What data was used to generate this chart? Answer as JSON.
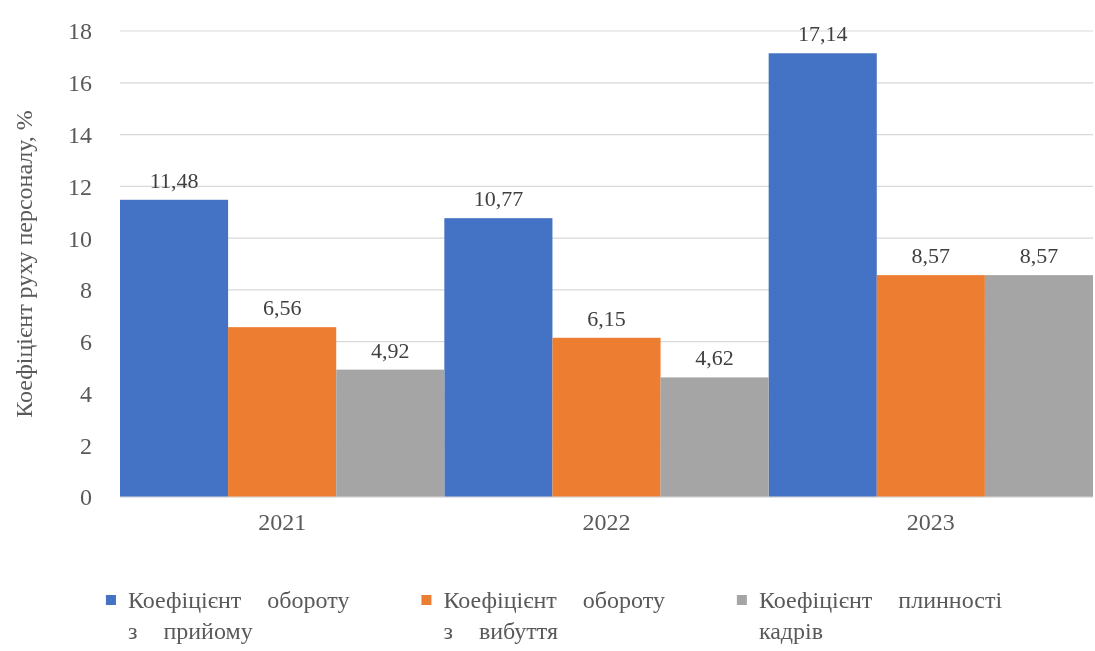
{
  "chart_data": {
    "type": "bar",
    "categories": [
      "2021",
      "2022",
      "2023"
    ],
    "ylabel": "Коефіцієнт руху персоналу, %",
    "ylim": [
      0,
      18
    ],
    "yticks": [
      0,
      2,
      4,
      6,
      8,
      10,
      12,
      14,
      16,
      18
    ],
    "grid": "y",
    "legend": "bottom",
    "series": [
      {
        "name": "Коефіцієнт обороту з прийому",
        "color": "#4472c4",
        "values": [
          11.48,
          10.77,
          17.14
        ],
        "value_labels": [
          "11,48",
          "10,77",
          "17,14"
        ]
      },
      {
        "name": "Коефіцієнт обороту з вибуття",
        "color": "#ed7d31",
        "values": [
          6.56,
          6.15,
          8.57
        ],
        "value_labels": [
          "6,56",
          "6,15",
          "8,57"
        ]
      },
      {
        "name": "Коефіцієнт плинності кадрів",
        "color": "#a5a5a5",
        "values": [
          4.92,
          4.62,
          8.57
        ],
        "value_labels": [
          "4,92",
          "4,62",
          "8,57"
        ]
      }
    ]
  }
}
